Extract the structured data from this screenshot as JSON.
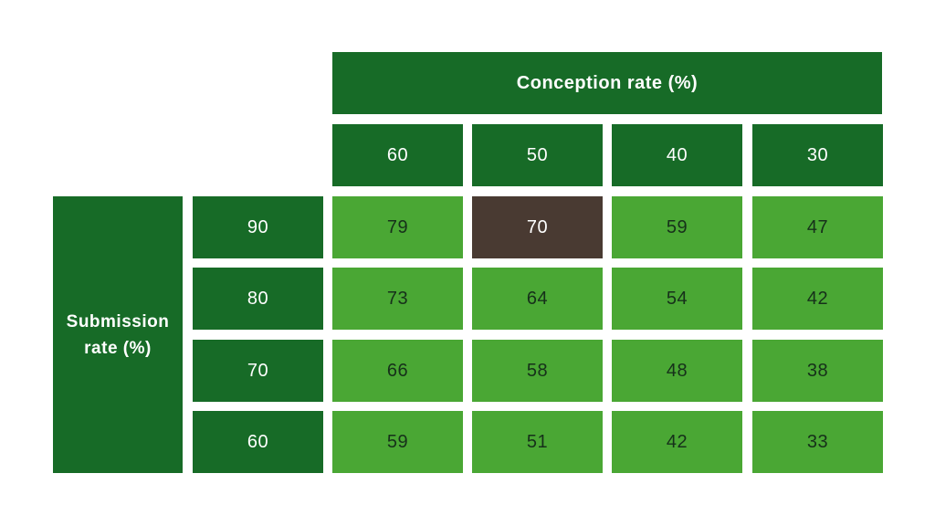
{
  "chart_data": {
    "type": "table",
    "column_header": "Conception rate (%)",
    "row_header_line1": "Submission",
    "row_header_line2": "rate (%)",
    "columns": [
      "60",
      "50",
      "40",
      "30"
    ],
    "rows": [
      "90",
      "80",
      "70",
      "60"
    ],
    "values": [
      [
        79,
        70,
        59,
        47
      ],
      [
        73,
        64,
        54,
        42
      ],
      [
        66,
        58,
        48,
        38
      ],
      [
        59,
        51,
        42,
        33
      ]
    ],
    "highlight": {
      "row": 0,
      "col": 1
    }
  },
  "colors": {
    "header_green": "#176b27",
    "cell_green": "#4aa734",
    "highlight_brown": "#493a32"
  }
}
